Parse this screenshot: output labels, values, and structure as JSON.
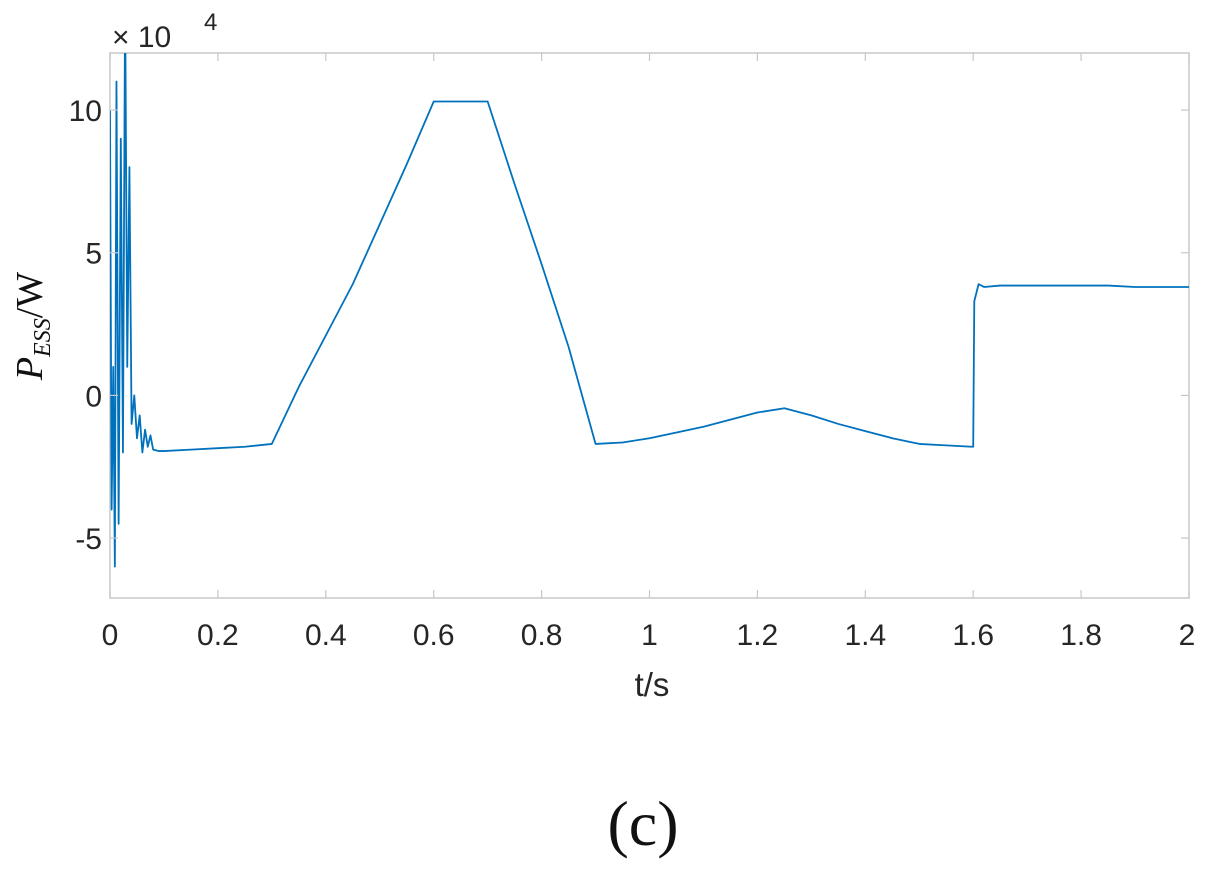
{
  "figure": {
    "caption": "(c)"
  },
  "chart_data": {
    "type": "line",
    "title": "",
    "xlabel": "t/s",
    "ylabel_main": "P",
    "ylabel_sub": "ESS",
    "ylabel_unit": "/W",
    "y_multiplier_prefix": "× 10",
    "y_multiplier_exp": "4",
    "xlim": [
      0,
      2
    ],
    "ylim": [
      -7.1,
      12
    ],
    "x_ticks": [
      0,
      0.2,
      0.4,
      0.6,
      0.8,
      1,
      1.2,
      1.4,
      1.6,
      1.8,
      2
    ],
    "x_tick_labels": [
      "0",
      "0.2",
      "0.4",
      "0.6",
      "0.8",
      "1",
      "1.2",
      "1.4",
      "1.6",
      "1.8",
      "2"
    ],
    "y_ticks": [
      -5,
      0,
      5,
      10
    ],
    "y_tick_labels": [
      "-5",
      "0",
      "5",
      "10"
    ],
    "grid": false,
    "series": [
      {
        "color": "#0072BD",
        "x": [
          0,
          0.003,
          0.006,
          0.009,
          0.012,
          0.016,
          0.02,
          0.024,
          0.028,
          0.032,
          0.036,
          0.04,
          0.045,
          0.05,
          0.055,
          0.06,
          0.065,
          0.07,
          0.075,
          0.08,
          0.09,
          0.1,
          0.15,
          0.2,
          0.25,
          0.3,
          0.35,
          0.4,
          0.45,
          0.5,
          0.55,
          0.6,
          0.65,
          0.7,
          0.75,
          0.8,
          0.85,
          0.9,
          0.95,
          1.0,
          1.05,
          1.1,
          1.15,
          1.2,
          1.25,
          1.3,
          1.35,
          1.4,
          1.45,
          1.5,
          1.55,
          1.598,
          1.6,
          1.602,
          1.61,
          1.62,
          1.65,
          1.7,
          1.75,
          1.8,
          1.85,
          1.9,
          1.95,
          2.0
        ],
        "y": [
          10,
          -4,
          1,
          -6,
          11,
          -4.5,
          9,
          -2,
          14,
          1,
          8,
          -1,
          0,
          -1.5,
          -0.7,
          -2,
          -1.2,
          -1.8,
          -1.4,
          -1.9,
          -1.95,
          -1.95,
          -1.9,
          -1.85,
          -1.8,
          -1.7,
          0.3,
          2.1,
          3.9,
          6.0,
          8.1,
          10.3,
          10.3,
          10.3,
          7.4,
          4.6,
          1.7,
          -1.7,
          -1.65,
          -1.5,
          -1.3,
          -1.1,
          -0.85,
          -0.6,
          -0.45,
          -0.7,
          -1.0,
          -1.25,
          -1.5,
          -1.7,
          -1.75,
          -1.8,
          -1.8,
          3.3,
          3.9,
          3.8,
          3.85,
          3.85,
          3.85,
          3.85,
          3.85,
          3.8,
          3.8,
          3.8
        ]
      }
    ]
  }
}
